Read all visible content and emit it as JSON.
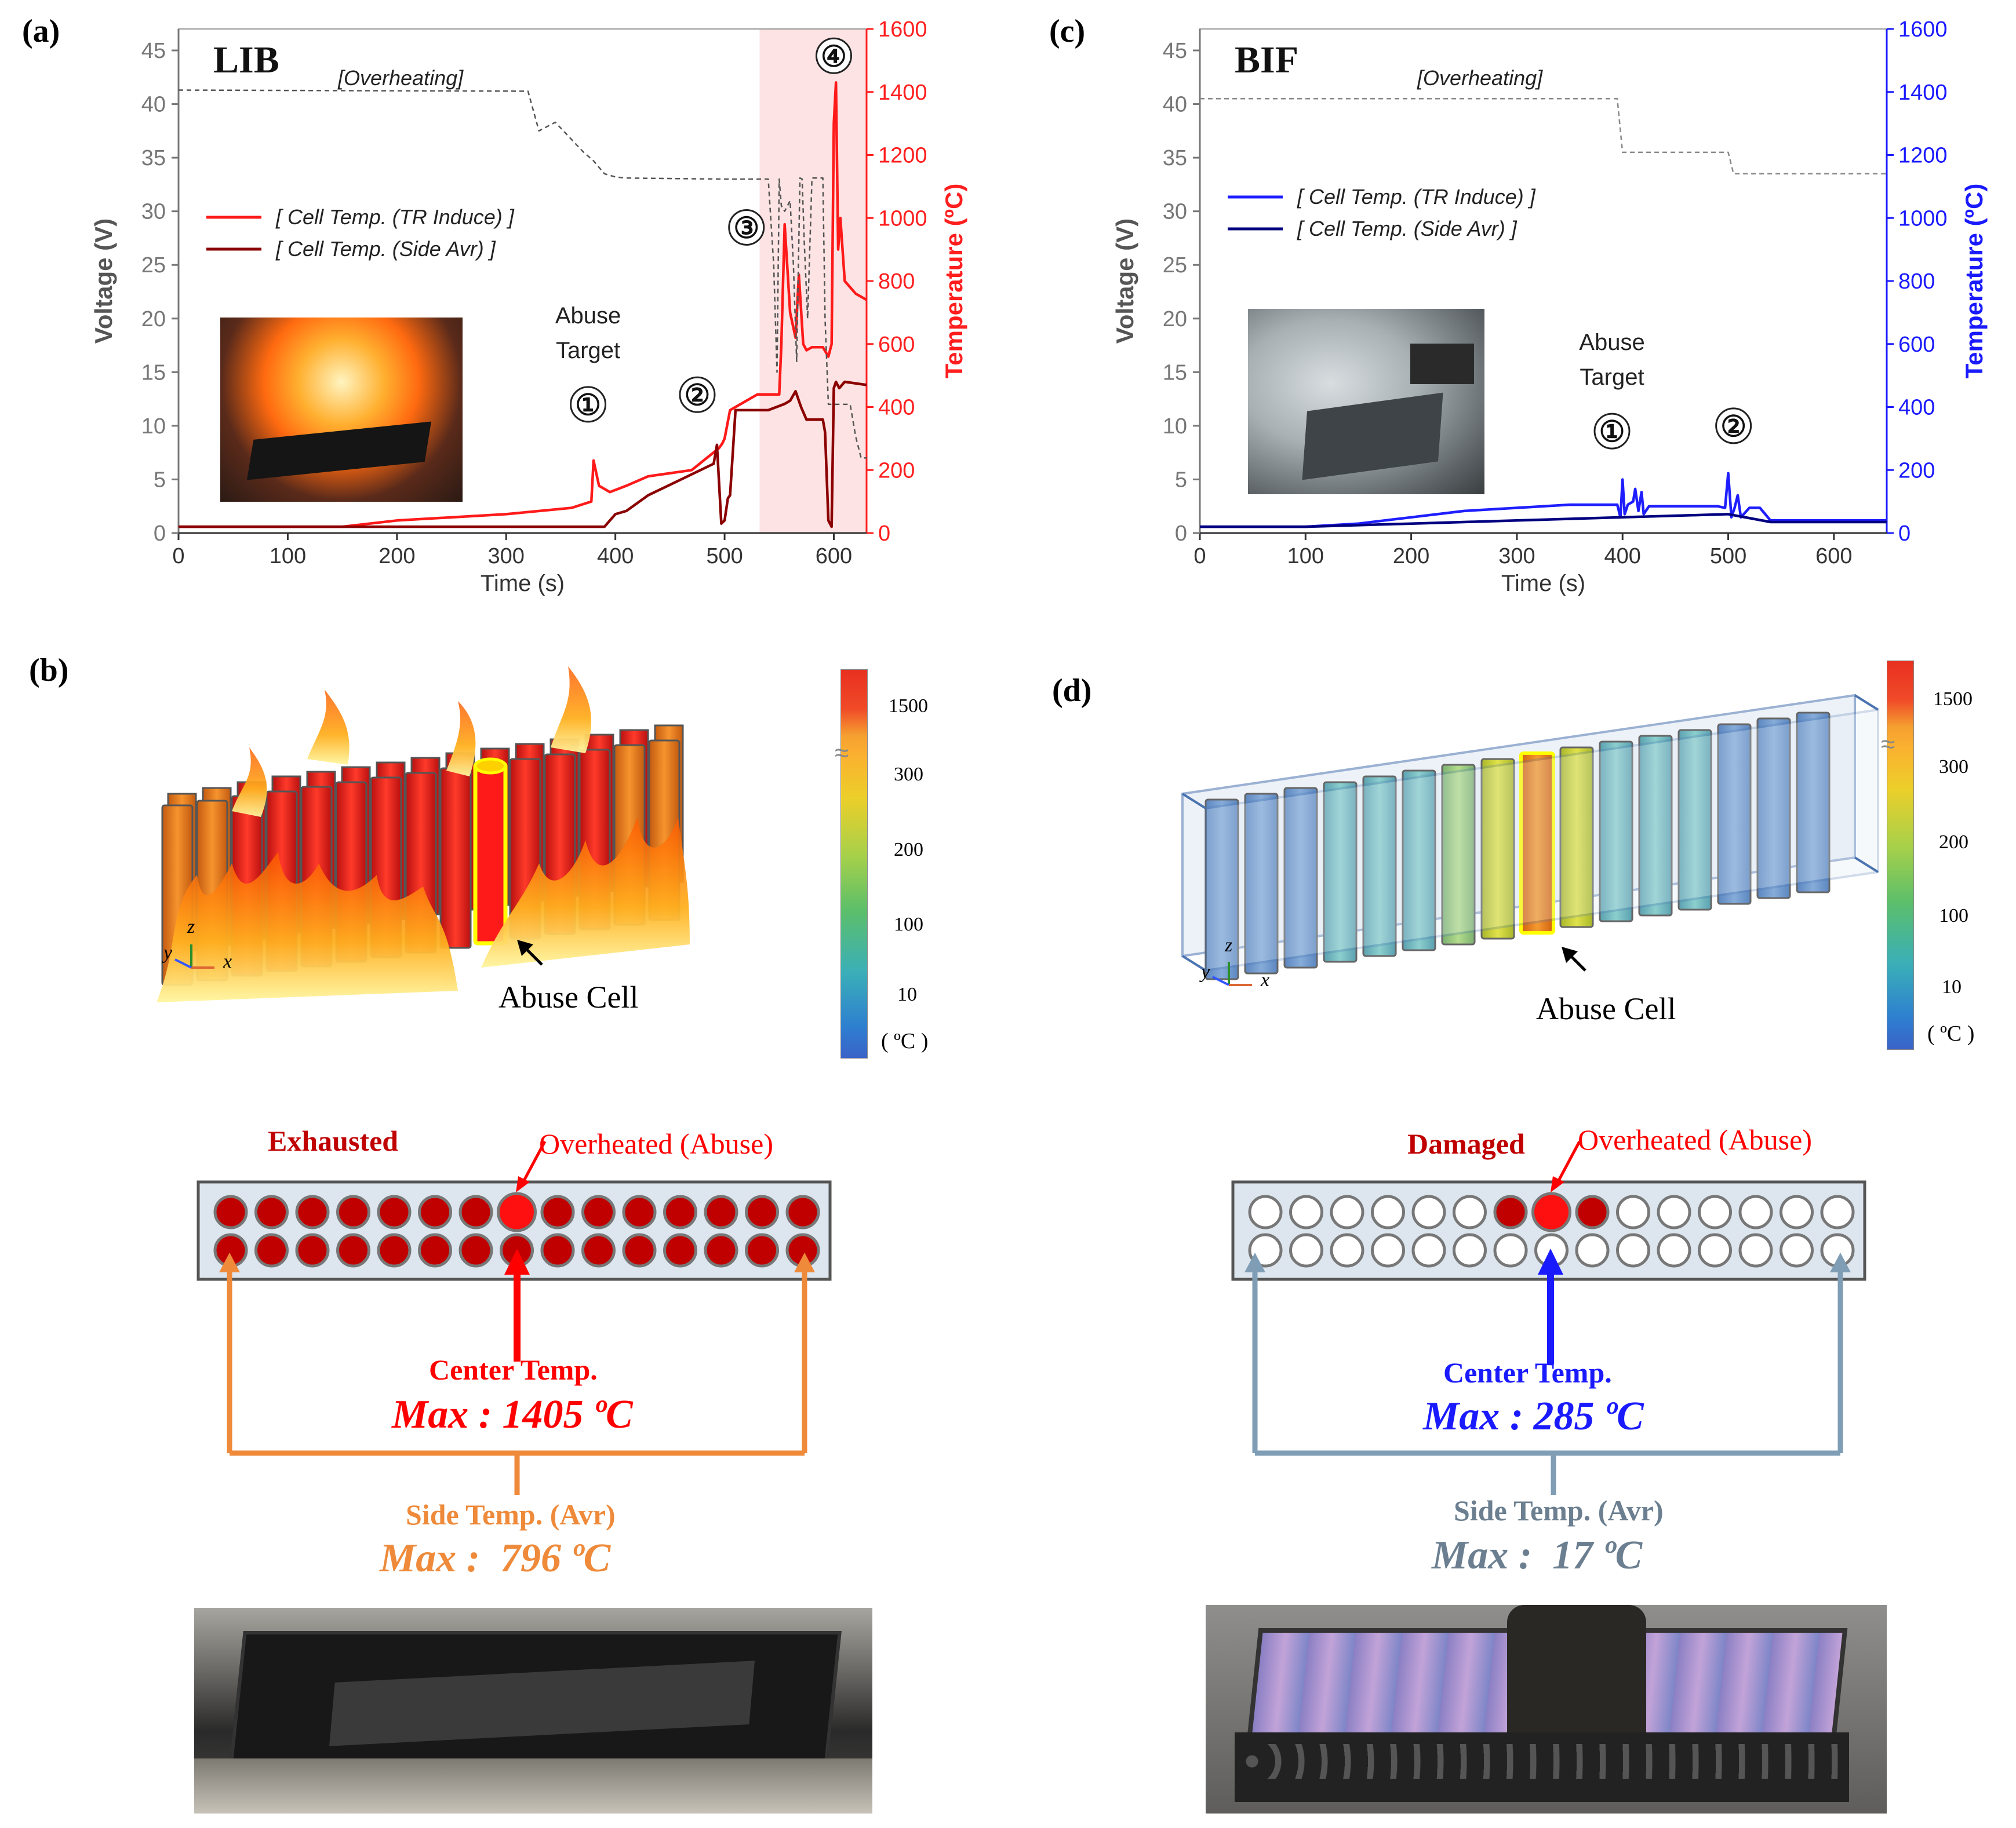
{
  "panels": {
    "a": "(a)",
    "b": "(b)",
    "c": "(c)",
    "d": "(d)"
  },
  "chart_data": [
    {
      "type": "line",
      "title": "LIB",
      "annotation": "[Overheating]",
      "xlabel": "Time (s)",
      "ylabel": "Voltage (V)",
      "y2label": "Temperature (ºC)",
      "xlim": [
        0,
        630
      ],
      "ylim": [
        0,
        47
      ],
      "y2lim": [
        0,
        1600
      ],
      "xticks": [
        "0",
        "100",
        "200",
        "300",
        "400",
        "500",
        "600"
      ],
      "yticks": [
        "0",
        "5",
        "10",
        "15",
        "20",
        "25",
        "30",
        "35",
        "40",
        "45"
      ],
      "y2ticks": [
        "0",
        "200",
        "400",
        "600",
        "800",
        "1000",
        "1200",
        "1400",
        "1600"
      ],
      "colors": {
        "left_axis": "#777777",
        "right_axis": "#ff1e1e",
        "t1": "#ff1a1a",
        "t2": "#8b0000",
        "v": "#555555",
        "shade": "#fde3e3"
      },
      "legend_position": "top-left",
      "shaded_region": [
        532,
        630
      ],
      "markers": [
        {
          "label": "Abuse",
          "label2": "Target",
          "num": "①",
          "x": 375,
          "y": 12
        },
        {
          "label": "",
          "label2": "",
          "num": "②",
          "x": 475,
          "y": 12.9
        },
        {
          "label": "",
          "label2": "",
          "num": "③",
          "x": 520,
          "y": 28.5
        },
        {
          "label": "",
          "label2": "",
          "num": "④",
          "x": 600,
          "y": 44.5
        }
      ],
      "series": [
        {
          "name": "[ Cell Temp. (TR Induce) ]",
          "axis": "right",
          "x": [
            0,
            150,
            200,
            300,
            360,
            378,
            380,
            385,
            395,
            410,
            430,
            470,
            495,
            498,
            500,
            505,
            530,
            550,
            552,
            555,
            560,
            565,
            568,
            572,
            575,
            580,
            590,
            595,
            598,
            600,
            602,
            604,
            606,
            610,
            620,
            630
          ],
          "y": [
            20,
            20,
            40,
            60,
            80,
            100,
            230,
            150,
            130,
            150,
            180,
            200,
            270,
            285,
            300,
            390,
            440,
            440,
            600,
            980,
            700,
            620,
            820,
            600,
            580,
            590,
            590,
            560,
            600,
            1300,
            1430,
            900,
            1000,
            800,
            760,
            740
          ]
        },
        {
          "name": "[ Cell Temp. (Side Avr) ]",
          "axis": "right",
          "x": [
            0,
            375,
            380,
            390,
            400,
            410,
            430,
            460,
            490,
            493,
            497,
            500,
            503,
            505,
            510,
            540,
            555,
            560,
            565,
            570,
            575,
            580,
            590,
            592,
            595,
            598,
            600,
            602,
            605,
            610,
            630
          ],
          "y": [
            20,
            20,
            20,
            20,
            60,
            70,
            120,
            170,
            220,
            280,
            30,
            40,
            110,
            120,
            390,
            390,
            410,
            420,
            450,
            400,
            360,
            360,
            360,
            320,
            40,
            20,
            460,
            480,
            460,
            480,
            470
          ]
        },
        {
          "name": "Voltage",
          "axis": "left",
          "x": [
            0,
            320,
            330,
            345,
            370,
            380,
            390,
            400,
            410,
            500,
            540,
            545,
            548,
            550,
            552,
            555,
            560,
            563,
            566,
            569,
            571,
            573,
            576,
            580,
            585,
            590,
            592,
            595,
            600,
            610,
            615,
            620,
            625,
            630
          ],
          "y": [
            41.3,
            41.2,
            37.5,
            38.3,
            35.6,
            34.7,
            33.5,
            33.2,
            33.1,
            33.0,
            33.0,
            25,
            15,
            33.0,
            30.5,
            30,
            31,
            25,
            16,
            33.1,
            33,
            27,
            20,
            33.1,
            33.1,
            33.1,
            20,
            12,
            12,
            12,
            12,
            9,
            7,
            7
          ]
        }
      ]
    },
    {
      "type": "line",
      "title": "BIF",
      "annotation": "[Overheating]",
      "xlabel": "Time (s)",
      "ylabel": "Voltage (V)",
      "y2label": "Temperature (ºC)",
      "xlim": [
        0,
        650
      ],
      "ylim": [
        0,
        47
      ],
      "y2lim": [
        0,
        1600
      ],
      "xticks": [
        "0",
        "100",
        "200",
        "300",
        "400",
        "500",
        "600"
      ],
      "yticks": [
        "0",
        "5",
        "10",
        "15",
        "20",
        "25",
        "30",
        "35",
        "40",
        "45"
      ],
      "y2ticks": [
        "0",
        "200",
        "400",
        "600",
        "800",
        "1000",
        "1200",
        "1400",
        "1600"
      ],
      "colors": {
        "left_axis": "#777777",
        "right_axis": "#1a1aff",
        "t1": "#1e1eff",
        "t2": "#000080",
        "v": "#888888"
      },
      "legend_position": "top-left",
      "markers": [
        {
          "label": "Abuse",
          "label2": "Target",
          "num": "①",
          "x": 390,
          "y": 9.5
        },
        {
          "label": "",
          "label2": "",
          "num": "②",
          "x": 505,
          "y": 10
        }
      ],
      "series": [
        {
          "name": "[ Cell Temp. (TR Induce) ]",
          "axis": "right",
          "x": [
            0,
            100,
            150,
            200,
            250,
            300,
            350,
            395,
            398,
            400,
            402,
            405,
            410,
            412,
            415,
            418,
            420,
            425,
            490,
            497,
            500,
            503,
            506,
            509,
            512,
            520,
            530,
            540,
            650
          ],
          "y": [
            20,
            20,
            30,
            50,
            70,
            80,
            90,
            90,
            50,
            170,
            60,
            90,
            100,
            140,
            70,
            130,
            60,
            85,
            85,
            80,
            190,
            50,
            80,
            120,
            50,
            80,
            80,
            40,
            40
          ]
        },
        {
          "name": "[ Cell Temp. (Side Avr) ]",
          "axis": "right",
          "x": [
            0,
            100,
            200,
            300,
            400,
            500,
            540,
            650
          ],
          "y": [
            20,
            20,
            30,
            40,
            50,
            60,
            35,
            35
          ]
        },
        {
          "name": "Voltage",
          "axis": "left",
          "x": [
            0,
            395,
            400,
            410,
            500,
            505,
            650
          ],
          "y": [
            40.5,
            40.5,
            35.5,
            35.5,
            35.5,
            33.5,
            33.5
          ]
        }
      ]
    }
  ],
  "photo_a": {
    "description_icon": "fire-photo-icon"
  },
  "photo_c": {
    "description_icon": "smoke-photo-icon"
  },
  "panel_b": {
    "abuse_label": "Abuse Cell",
    "colorbar": {
      "ticks": [
        "1500",
        "300",
        "200",
        "100",
        "10"
      ],
      "unit": "( ºC )"
    },
    "axes": {
      "y": "y",
      "z": "z",
      "x": "x"
    }
  },
  "panel_d": {
    "abuse_label": "Abuse Cell",
    "colorbar": {
      "ticks": [
        "1500",
        "300",
        "200",
        "100",
        "10"
      ],
      "unit": "( ºC )"
    },
    "axes": {
      "y": "y",
      "z": "z",
      "x": "x"
    }
  },
  "schematic_left": {
    "state_label": "Exhausted",
    "abuse_label": "Overheated (Abuse)",
    "center_label": "Center Temp.",
    "center_max": "Max : 1405 ºC",
    "side_label": "Side Temp. (Avr)",
    "side_max": "Max :  796 ºC",
    "colors": {
      "state": "#c00000",
      "center": "#ff0000",
      "side": "#ee8a3a"
    }
  },
  "schematic_right": {
    "state_label": "Damaged",
    "abuse_label": "Overheated (Abuse)",
    "center_label": "Center Temp.",
    "center_max": "Max : 285 ºC",
    "side_label": "Side Temp. (Avr)",
    "side_max": "Max :  17 ºC",
    "colors": {
      "state": "#c00000",
      "center": "#1a1aff",
      "side": "#7f9db5"
    }
  }
}
